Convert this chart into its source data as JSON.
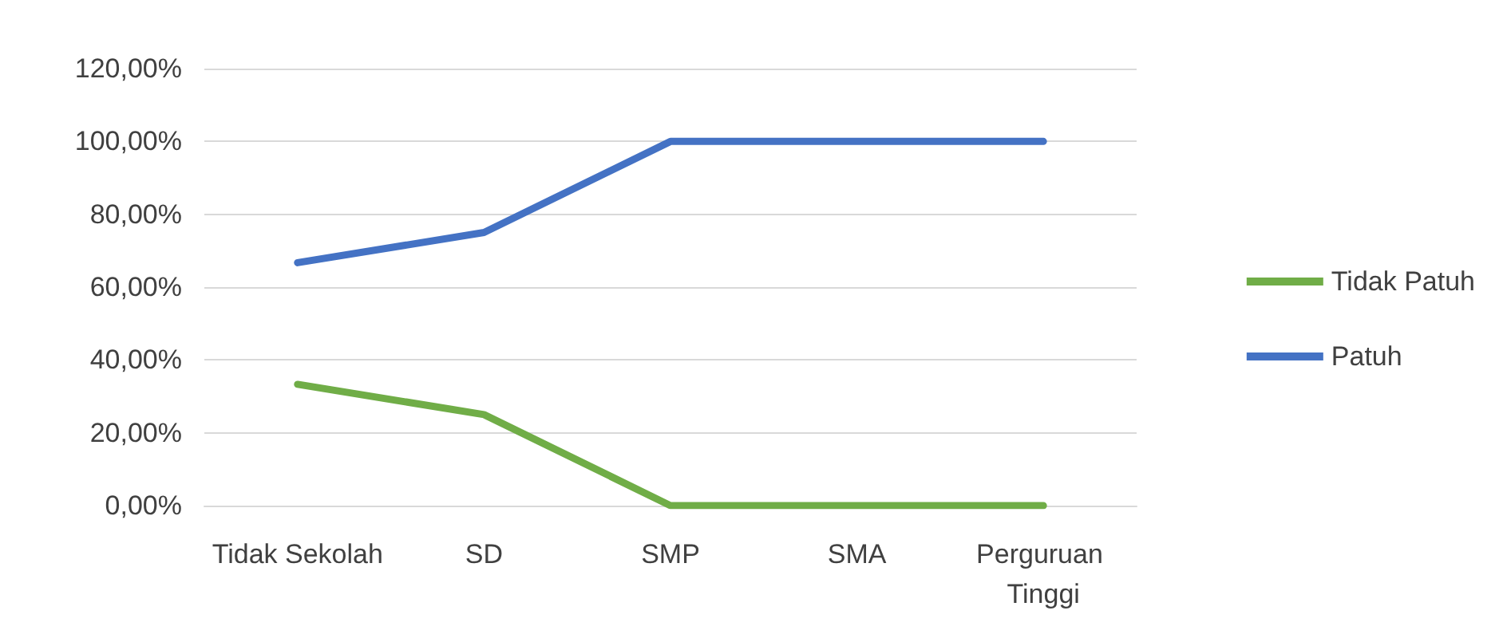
{
  "chart_data": {
    "type": "line",
    "categories": [
      "Tidak Sekolah",
      "SD",
      "SMP",
      "SMA",
      "Perguruan Tinggi"
    ],
    "series": [
      {
        "name": "Tidak Patuh",
        "color": "#70ad47",
        "values": [
          33.3,
          25,
          0,
          0,
          0
        ]
      },
      {
        "name": "Patuh",
        "color": "#4472c4",
        "values": [
          66.7,
          75,
          100,
          100,
          100
        ]
      }
    ],
    "ylim": [
      0,
      120
    ],
    "yticks": [
      {
        "value": 0,
        "label": "0,00%"
      },
      {
        "value": 20,
        "label": "20,00%"
      },
      {
        "value": 40,
        "label": "40,00%"
      },
      {
        "value": 60,
        "label": "60,00%"
      },
      {
        "value": 80,
        "label": "80,00%"
      },
      {
        "value": 100,
        "label": "100,00%"
      },
      {
        "value": 120,
        "label": "120,00%"
      }
    ],
    "grid": "y",
    "legend": "right",
    "marker": "none",
    "line_style": "solid"
  }
}
